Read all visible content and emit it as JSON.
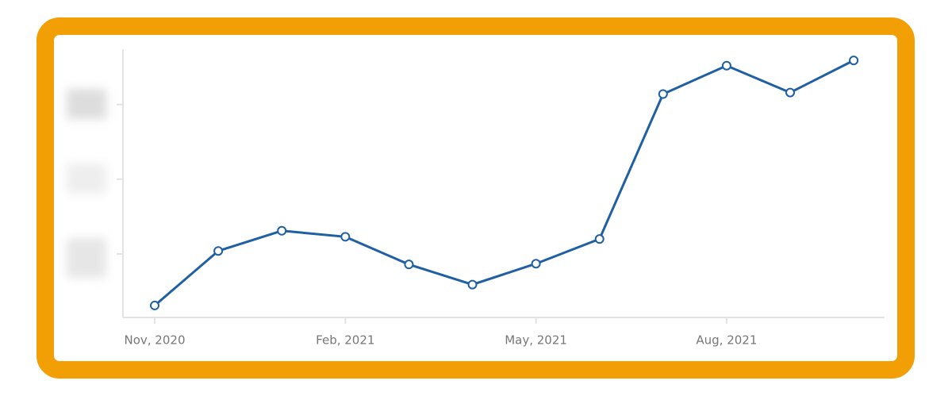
{
  "chart_data": {
    "type": "line",
    "categories": [
      "Nov, 2020",
      null,
      null,
      "Feb, 2021",
      null,
      null,
      "May, 2021",
      null,
      null,
      "Aug, 2021",
      null,
      null
    ],
    "values": [
      0.31,
      1.04,
      1.31,
      1.23,
      0.86,
      0.59,
      0.87,
      1.2,
      3.14,
      3.52,
      3.16,
      3.59
    ],
    "color": "#1f5fa3",
    "ylim": [
      0.15,
      3.74
    ],
    "yticks": [
      1,
      2,
      3
    ]
  }
}
